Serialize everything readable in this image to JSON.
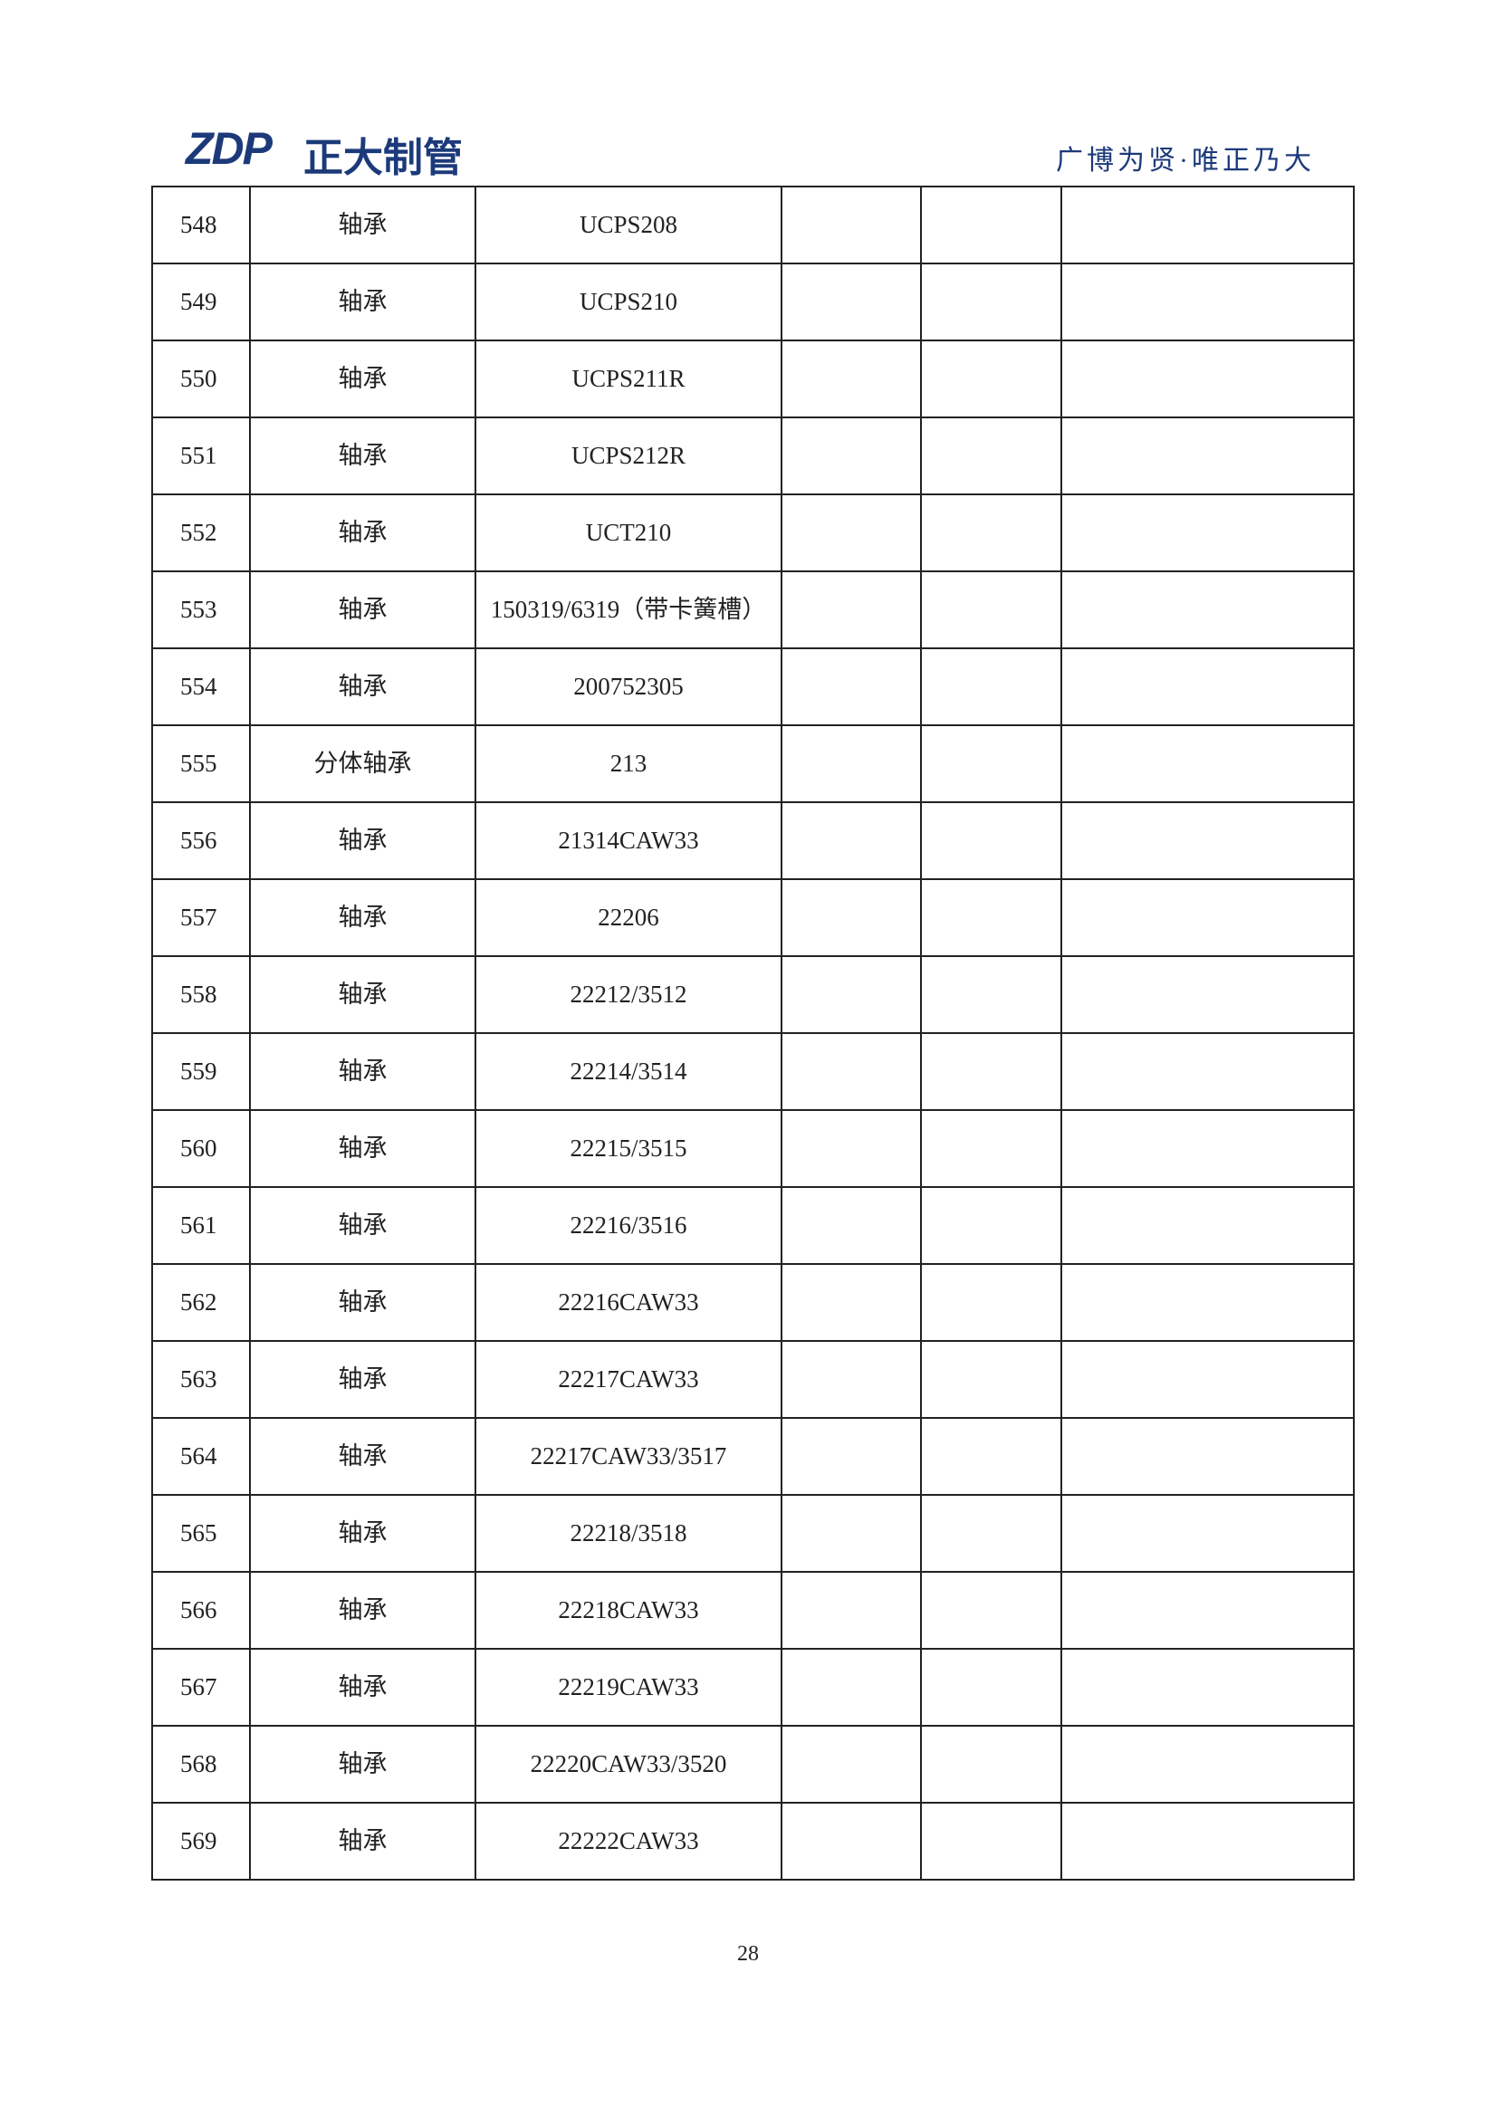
{
  "header": {
    "logo": "ZDP",
    "company": "正大制管",
    "slogan": "广博为贤·唯正乃大"
  },
  "table": {
    "rows": [
      [
        "548",
        "轴承",
        "UCPS208"
      ],
      [
        "549",
        "轴承",
        "UCPS210"
      ],
      [
        "550",
        "轴承",
        "UCPS211R"
      ],
      [
        "551",
        "轴承",
        "UCPS212R"
      ],
      [
        "552",
        "轴承",
        "UCT210"
      ],
      [
        "553",
        "轴承",
        "150319/6319（带卡簧槽）"
      ],
      [
        "554",
        "轴承",
        "200752305"
      ],
      [
        "555",
        "分体轴承",
        "213"
      ],
      [
        "556",
        "轴承",
        "21314CAW33"
      ],
      [
        "557",
        "轴承",
        "22206"
      ],
      [
        "558",
        "轴承",
        "22212/3512"
      ],
      [
        "559",
        "轴承",
        "22214/3514"
      ],
      [
        "560",
        "轴承",
        "22215/3515"
      ],
      [
        "561",
        "轴承",
        "22216/3516"
      ],
      [
        "562",
        "轴承",
        "22216CAW33"
      ],
      [
        "563",
        "轴承",
        "22217CAW33"
      ],
      [
        "564",
        "轴承",
        "22217CAW33/3517"
      ],
      [
        "565",
        "轴承",
        "22218/3518"
      ],
      [
        "566",
        "轴承",
        "22218CAW33"
      ],
      [
        "567",
        "轴承",
        "22219CAW33"
      ],
      [
        "568",
        "轴承",
        "22220CAW33/3520"
      ],
      [
        "569",
        "轴承",
        "22222CAW33"
      ]
    ]
  },
  "footer": {
    "page": "28"
  }
}
